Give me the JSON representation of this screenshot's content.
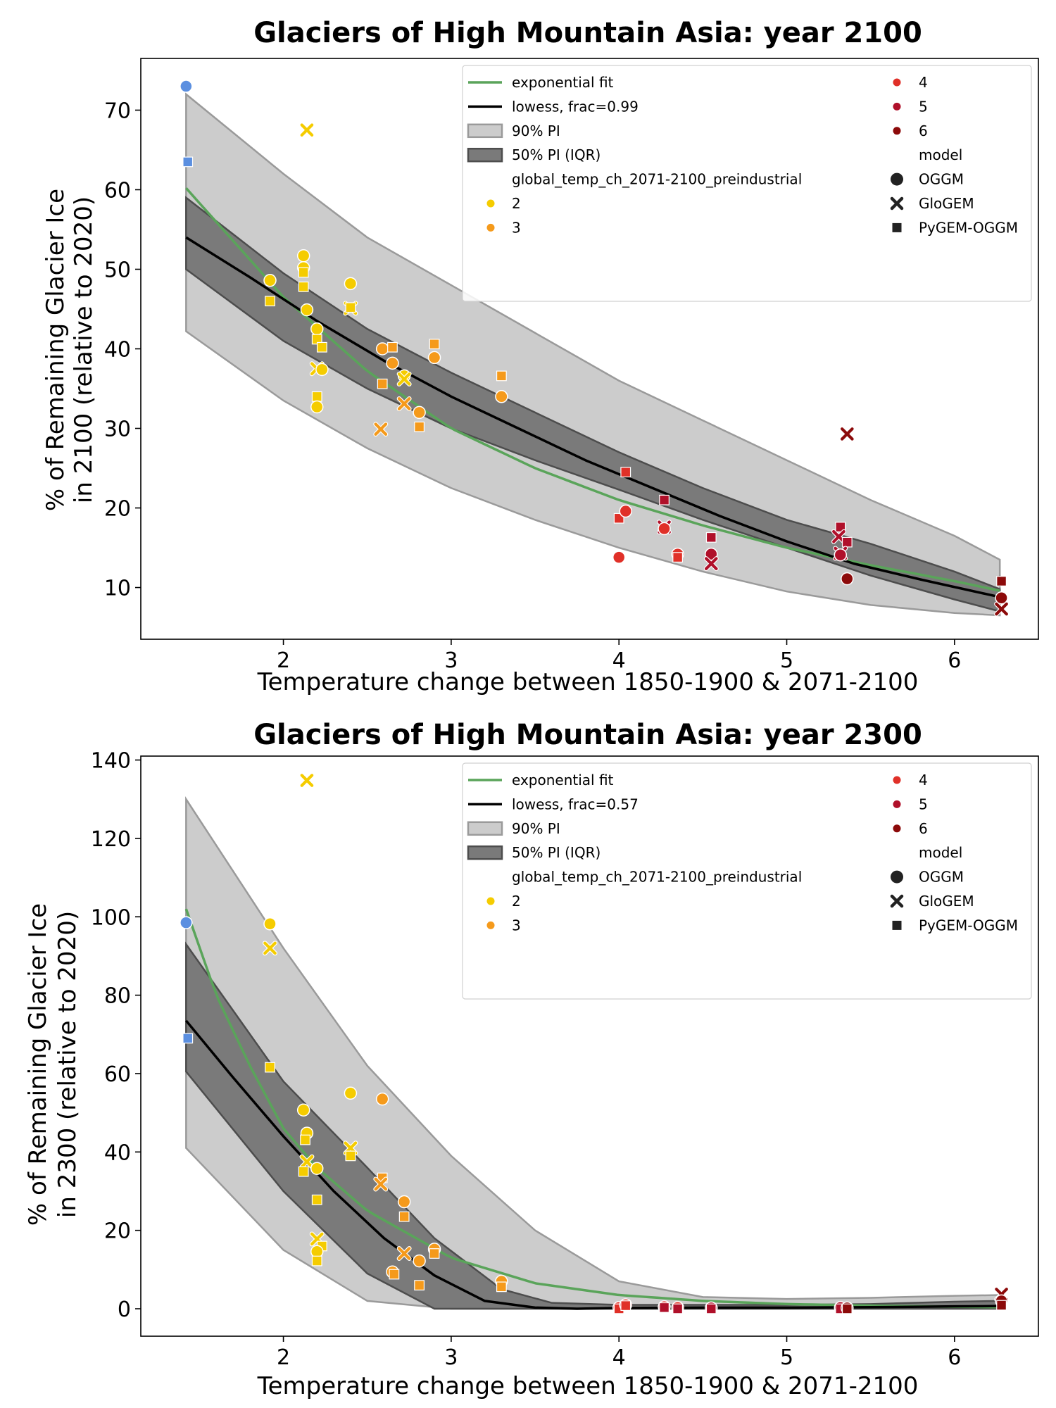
{
  "chart_data": [
    {
      "type": "scatter",
      "title": "Glaciers of High Mountain Asia:  year 2100",
      "xlabel": "Temperature change between 1850-1900 & 2071-2100",
      "ylabel_line1": "% of Remaining Glacier Ice",
      "ylabel_line2": "in 2100 (relative to 2020)",
      "xlim": [
        1.15,
        6.5
      ],
      "ylim": [
        3.5,
        76.5
      ],
      "xticks": [
        2,
        3,
        4,
        5,
        6
      ],
      "yticks": [
        10,
        20,
        30,
        40,
        50,
        60,
        70
      ],
      "legend": {
        "placement": "top-right",
        "fit_label": "exponential fit",
        "lowess_label": "lowess, frac=0.99",
        "pi90_label": "90% PI",
        "pi50_label": "50% PI (IQR)",
        "hue_title": "global_temp_ch_2071-2100_preindustrial",
        "hue_levels": [
          "2",
          "3",
          "4",
          "5",
          "6"
        ],
        "model_title": "model",
        "models": [
          "OGGM",
          "GloGEM",
          "PyGEM-OGGM"
        ]
      },
      "colors": {
        "1": "#5b8fe0",
        "2": "#f5cc00",
        "3": "#f59a1b",
        "4": "#e03028",
        "5": "#b0102a",
        "6": "#8c0a0a",
        "fit": "#5aa45a",
        "lowess": "#000000",
        "pi90": "#cccccc",
        "pi50": "#7a7a7a"
      },
      "exp_fit": {
        "x": [
          1.42,
          2,
          2.5,
          3,
          3.5,
          4,
          4.5,
          5,
          5.5,
          6,
          6.27
        ],
        "y": [
          60.2,
          46.5,
          37.2,
          30,
          25,
          21,
          17.8,
          15,
          12.8,
          10.8,
          9.6
        ]
      },
      "lowess": {
        "x": [
          1.42,
          1.8,
          2.2,
          2.6,
          3,
          3.4,
          3.8,
          4.2,
          4.6,
          5,
          5.4,
          5.8,
          6.27
        ],
        "y": [
          54,
          49,
          43.5,
          38.5,
          34,
          30,
          26,
          22.5,
          19,
          15.8,
          13,
          11,
          8.8
        ]
      },
      "pi90": {
        "x": [
          1.42,
          2,
          2.5,
          3,
          3.5,
          4,
          4.5,
          5,
          5.5,
          6,
          6.27
        ],
        "upper": [
          72,
          62,
          54,
          48,
          42,
          36,
          31,
          26,
          21,
          16.5,
          13.5
        ],
        "lower": [
          42.2,
          33.5,
          27.5,
          22.5,
          18.5,
          15,
          12,
          9.5,
          7.8,
          6.8,
          6.5
        ]
      },
      "pi50": {
        "x": [
          1.42,
          2,
          2.5,
          3,
          3.5,
          4,
          4.5,
          5,
          5.5,
          6,
          6.27
        ],
        "upper": [
          59,
          49.5,
          42.5,
          37,
          32,
          27,
          22.5,
          18.5,
          15.5,
          12,
          9.8
        ],
        "lower": [
          50,
          41,
          35,
          30,
          26,
          22.3,
          18.5,
          15,
          11.5,
          8.5,
          7
        ]
      },
      "points": [
        {
          "x": 1.42,
          "y": 73,
          "model": "OGGM",
          "level": "1"
        },
        {
          "x": 1.43,
          "y": 63.5,
          "model": "PyGEM-OGGM",
          "level": "1"
        },
        {
          "x": 1.92,
          "y": 48.6,
          "model": "OGGM",
          "level": "2"
        },
        {
          "x": 1.92,
          "y": 46,
          "model": "PyGEM-OGGM",
          "level": "2"
        },
        {
          "x": 2.12,
          "y": 51.7,
          "model": "OGGM",
          "level": "2"
        },
        {
          "x": 2.12,
          "y": 50.2,
          "model": "OGGM",
          "level": "2"
        },
        {
          "x": 2.12,
          "y": 49.6,
          "model": "PyGEM-OGGM",
          "level": "2"
        },
        {
          "x": 2.12,
          "y": 47.8,
          "model": "PyGEM-OGGM",
          "level": "2"
        },
        {
          "x": 2.14,
          "y": 67.5,
          "model": "GloGEM",
          "level": "2"
        },
        {
          "x": 2.14,
          "y": 44.9,
          "model": "OGGM",
          "level": "2"
        },
        {
          "x": 2.2,
          "y": 42.5,
          "model": "OGGM",
          "level": "2"
        },
        {
          "x": 2.2,
          "y": 41.2,
          "model": "PyGEM-OGGM",
          "level": "2"
        },
        {
          "x": 2.23,
          "y": 40.2,
          "model": "PyGEM-OGGM",
          "level": "2"
        },
        {
          "x": 2.2,
          "y": 37.5,
          "model": "GloGEM",
          "level": "2"
        },
        {
          "x": 2.23,
          "y": 37.4,
          "model": "OGGM",
          "level": "2"
        },
        {
          "x": 2.2,
          "y": 34,
          "model": "PyGEM-OGGM",
          "level": "2"
        },
        {
          "x": 2.2,
          "y": 32.7,
          "model": "OGGM",
          "level": "2"
        },
        {
          "x": 2.4,
          "y": 48.2,
          "model": "OGGM",
          "level": "2"
        },
        {
          "x": 2.4,
          "y": 45.1,
          "model": "GloGEM",
          "level": "2"
        },
        {
          "x": 2.4,
          "y": 45.2,
          "model": "PyGEM-OGGM",
          "level": "2"
        },
        {
          "x": 2.59,
          "y": 40,
          "model": "OGGM",
          "level": "3"
        },
        {
          "x": 2.65,
          "y": 40.2,
          "model": "PyGEM-OGGM",
          "level": "3"
        },
        {
          "x": 2.65,
          "y": 38.2,
          "model": "OGGM",
          "level": "3"
        },
        {
          "x": 2.59,
          "y": 35.6,
          "model": "PyGEM-OGGM",
          "level": "3"
        },
        {
          "x": 2.72,
          "y": 36.6,
          "model": "OGGM",
          "level": "2"
        },
        {
          "x": 2.72,
          "y": 36.2,
          "model": "GloGEM",
          "level": "2"
        },
        {
          "x": 2.72,
          "y": 33.1,
          "model": "GloGEM",
          "level": "3"
        },
        {
          "x": 2.58,
          "y": 29.9,
          "model": "GloGEM",
          "level": "3"
        },
        {
          "x": 2.81,
          "y": 32,
          "model": "OGGM",
          "level": "3"
        },
        {
          "x": 2.81,
          "y": 30.2,
          "model": "PyGEM-OGGM",
          "level": "3"
        },
        {
          "x": 2.9,
          "y": 40.6,
          "model": "PyGEM-OGGM",
          "level": "3"
        },
        {
          "x": 2.9,
          "y": 38.9,
          "model": "OGGM",
          "level": "3"
        },
        {
          "x": 3.3,
          "y": 36.6,
          "model": "PyGEM-OGGM",
          "level": "3"
        },
        {
          "x": 3.3,
          "y": 34,
          "model": "OGGM",
          "level": "3"
        },
        {
          "x": 4.0,
          "y": 13.8,
          "model": "OGGM",
          "level": "4"
        },
        {
          "x": 4.0,
          "y": 18.7,
          "model": "PyGEM-OGGM",
          "level": "4"
        },
        {
          "x": 4.04,
          "y": 19.6,
          "model": "OGGM",
          "level": "4"
        },
        {
          "x": 4.04,
          "y": 24.5,
          "model": "PyGEM-OGGM",
          "level": "4"
        },
        {
          "x": 4.27,
          "y": 21,
          "model": "PyGEM-OGGM",
          "level": "5"
        },
        {
          "x": 4.27,
          "y": 17.6,
          "model": "GloGEM",
          "level": "5"
        },
        {
          "x": 4.27,
          "y": 17.4,
          "model": "OGGM",
          "level": "4"
        },
        {
          "x": 4.35,
          "y": 14.2,
          "model": "OGGM",
          "level": "4"
        },
        {
          "x": 4.35,
          "y": 13.8,
          "model": "PyGEM-OGGM",
          "level": "4"
        },
        {
          "x": 4.55,
          "y": 16.3,
          "model": "PyGEM-OGGM",
          "level": "5"
        },
        {
          "x": 4.55,
          "y": 14.2,
          "model": "OGGM",
          "level": "5"
        },
        {
          "x": 4.55,
          "y": 13,
          "model": "GloGEM",
          "level": "5"
        },
        {
          "x": 5.32,
          "y": 17.6,
          "model": "PyGEM-OGGM",
          "level": "5"
        },
        {
          "x": 5.31,
          "y": 16.4,
          "model": "GloGEM",
          "level": "5"
        },
        {
          "x": 5.36,
          "y": 15.7,
          "model": "PyGEM-OGGM",
          "level": "5"
        },
        {
          "x": 5.32,
          "y": 14.3,
          "model": "GloGEM",
          "level": "5"
        },
        {
          "x": 5.32,
          "y": 14.1,
          "model": "OGGM",
          "level": "5"
        },
        {
          "x": 5.36,
          "y": 29.3,
          "model": "GloGEM",
          "level": "6"
        },
        {
          "x": 5.36,
          "y": 11.1,
          "model": "OGGM",
          "level": "6"
        },
        {
          "x": 6.28,
          "y": 10.8,
          "model": "PyGEM-OGGM",
          "level": "6"
        },
        {
          "x": 6.28,
          "y": 8.7,
          "model": "OGGM",
          "level": "6"
        },
        {
          "x": 6.28,
          "y": 7.3,
          "model": "GloGEM",
          "level": "6"
        }
      ]
    },
    {
      "type": "scatter",
      "title": "Glaciers of High Mountain Asia:  year 2300",
      "xlabel": "Temperature change between 1850-1900 & 2071-2100",
      "ylabel_line1": "% of Remaining Glacier Ice",
      "ylabel_line2": "in 2300 (relative to 2020)",
      "xlim": [
        1.15,
        6.5
      ],
      "ylim": [
        -7,
        141
      ],
      "xticks": [
        2,
        3,
        4,
        5,
        6
      ],
      "yticks": [
        0,
        20,
        40,
        60,
        80,
        100,
        120,
        140
      ],
      "legend": {
        "placement": "top-right",
        "fit_label": "exponential fit",
        "lowess_label": "lowess, frac=0.57",
        "pi90_label": "90% PI",
        "pi50_label": "50% PI (IQR)",
        "hue_title": "global_temp_ch_2071-2100_preindustrial",
        "hue_levels": [
          "2",
          "3",
          "4",
          "5",
          "6"
        ],
        "model_title": "model",
        "models": [
          "OGGM",
          "GloGEM",
          "PyGEM-OGGM"
        ]
      },
      "colors": {
        "1": "#5b8fe0",
        "2": "#f5cc00",
        "3": "#f59a1b",
        "4": "#e03028",
        "5": "#b0102a",
        "6": "#8c0a0a",
        "fit": "#5aa45a",
        "lowess": "#000000",
        "pi90": "#cccccc",
        "pi50": "#7a7a7a"
      },
      "exp_fit": {
        "x": [
          1.42,
          1.6,
          1.8,
          2,
          2.2,
          2.5,
          3,
          3.5,
          4,
          4.5,
          5,
          5.5,
          6,
          6.27
        ],
        "y": [
          102,
          80,
          62,
          46,
          36,
          25,
          13,
          6.5,
          3.5,
          2,
          1.2,
          0.8,
          0.5,
          0.4
        ]
      },
      "lowess": {
        "x": [
          1.42,
          1.7,
          2.0,
          2.3,
          2.6,
          2.9,
          3.2,
          3.5,
          3.75,
          4,
          4.5,
          5,
          5.5,
          6,
          6.27
        ],
        "y": [
          73.5,
          59,
          44,
          30,
          18,
          8.5,
          2,
          0.3,
          0.0,
          0.2,
          0.3,
          0.3,
          0.4,
          0.6,
          0.7
        ]
      },
      "pi90": {
        "x": [
          1.42,
          2,
          2.5,
          3,
          3.5,
          4,
          4.5,
          5,
          5.5,
          6,
          6.27
        ],
        "upper": [
          130,
          92,
          62,
          39,
          20,
          7,
          3,
          2.5,
          2.8,
          3.3,
          3.5
        ],
        "lower": [
          41,
          15,
          2,
          0,
          0,
          0,
          0,
          0,
          0,
          0,
          0
        ]
      },
      "pi50": {
        "x": [
          1.42,
          2,
          2.5,
          2.9,
          3.3,
          3.6,
          4,
          4.5,
          5,
          5.5,
          6,
          6.27
        ],
        "upper": [
          93,
          58,
          36,
          18,
          5,
          1.5,
          1,
          1,
          1,
          1.2,
          1.8,
          2
        ]
      },
      "pi50_lower": {
        "x": [
          1.42,
          2,
          2.5,
          2.9,
          3.3,
          6.27
        ],
        "lower": [
          60.5,
          30,
          9,
          0,
          0,
          0
        ]
      },
      "points": [
        {
          "x": 1.42,
          "y": 98.5,
          "model": "OGGM",
          "level": "1"
        },
        {
          "x": 1.43,
          "y": 69,
          "model": "PyGEM-OGGM",
          "level": "1"
        },
        {
          "x": 1.92,
          "y": 98.2,
          "model": "OGGM",
          "level": "2"
        },
        {
          "x": 1.92,
          "y": 92,
          "model": "GloGEM",
          "level": "2"
        },
        {
          "x": 1.92,
          "y": 61.6,
          "model": "PyGEM-OGGM",
          "level": "2"
        },
        {
          "x": 2.14,
          "y": 134.8,
          "model": "GloGEM",
          "level": "2"
        },
        {
          "x": 2.12,
          "y": 50.7,
          "model": "OGGM",
          "level": "2"
        },
        {
          "x": 2.14,
          "y": 44.8,
          "model": "OGGM",
          "level": "2"
        },
        {
          "x": 2.13,
          "y": 43.1,
          "model": "PyGEM-OGGM",
          "level": "2"
        },
        {
          "x": 2.14,
          "y": 37.5,
          "model": "GloGEM",
          "level": "2"
        },
        {
          "x": 2.12,
          "y": 35,
          "model": "PyGEM-OGGM",
          "level": "2"
        },
        {
          "x": 2.2,
          "y": 35.8,
          "model": "OGGM",
          "level": "2"
        },
        {
          "x": 2.2,
          "y": 27.8,
          "model": "PyGEM-OGGM",
          "level": "2"
        },
        {
          "x": 2.2,
          "y": 17.8,
          "model": "GloGEM",
          "level": "2"
        },
        {
          "x": 2.23,
          "y": 16,
          "model": "PyGEM-OGGM",
          "level": "2"
        },
        {
          "x": 2.2,
          "y": 14.6,
          "model": "OGGM",
          "level": "2"
        },
        {
          "x": 2.2,
          "y": 12.2,
          "model": "PyGEM-OGGM",
          "level": "2"
        },
        {
          "x": 2.4,
          "y": 55,
          "model": "OGGM",
          "level": "2"
        },
        {
          "x": 2.4,
          "y": 41,
          "model": "GloGEM",
          "level": "2"
        },
        {
          "x": 2.4,
          "y": 39,
          "model": "PyGEM-OGGM",
          "level": "2"
        },
        {
          "x": 2.59,
          "y": 53.5,
          "model": "OGGM",
          "level": "3"
        },
        {
          "x": 2.59,
          "y": 33.4,
          "model": "PyGEM-OGGM",
          "level": "3"
        },
        {
          "x": 2.58,
          "y": 31.8,
          "model": "GloGEM",
          "level": "3"
        },
        {
          "x": 2.65,
          "y": 9.4,
          "model": "OGGM",
          "level": "3"
        },
        {
          "x": 2.66,
          "y": 8.8,
          "model": "PyGEM-OGGM",
          "level": "3"
        },
        {
          "x": 2.72,
          "y": 27.3,
          "model": "OGGM",
          "level": "3"
        },
        {
          "x": 2.72,
          "y": 23.5,
          "model": "PyGEM-OGGM",
          "level": "3"
        },
        {
          "x": 2.72,
          "y": 14.1,
          "model": "GloGEM",
          "level": "3"
        },
        {
          "x": 2.81,
          "y": 12.2,
          "model": "OGGM",
          "level": "3"
        },
        {
          "x": 2.81,
          "y": 6,
          "model": "PyGEM-OGGM",
          "level": "3"
        },
        {
          "x": 2.9,
          "y": 15.2,
          "model": "OGGM",
          "level": "3"
        },
        {
          "x": 2.9,
          "y": 14.1,
          "model": "PyGEM-OGGM",
          "level": "3"
        },
        {
          "x": 3.3,
          "y": 7,
          "model": "OGGM",
          "level": "3"
        },
        {
          "x": 3.3,
          "y": 5.6,
          "model": "PyGEM-OGGM",
          "level": "3"
        },
        {
          "x": 4.0,
          "y": 0.3,
          "model": "OGGM",
          "level": "4"
        },
        {
          "x": 4.0,
          "y": 0,
          "model": "PyGEM-OGGM",
          "level": "4"
        },
        {
          "x": 4.04,
          "y": 1,
          "model": "OGGM",
          "level": "4"
        },
        {
          "x": 4.04,
          "y": 0.8,
          "model": "PyGEM-OGGM",
          "level": "4"
        },
        {
          "x": 4.27,
          "y": 0.5,
          "model": "OGGM",
          "level": "4"
        },
        {
          "x": 4.27,
          "y": 0.3,
          "model": "PyGEM-OGGM",
          "level": "5"
        },
        {
          "x": 4.35,
          "y": 0.3,
          "model": "OGGM",
          "level": "4"
        },
        {
          "x": 4.35,
          "y": 0,
          "model": "PyGEM-OGGM",
          "level": "5"
        },
        {
          "x": 4.55,
          "y": 0.2,
          "model": "OGGM",
          "level": "5"
        },
        {
          "x": 4.55,
          "y": 0,
          "model": "PyGEM-OGGM",
          "level": "5"
        },
        {
          "x": 5.32,
          "y": 0.3,
          "model": "OGGM",
          "level": "5"
        },
        {
          "x": 5.32,
          "y": 0,
          "model": "PyGEM-OGGM",
          "level": "5"
        },
        {
          "x": 5.36,
          "y": 0.2,
          "model": "OGGM",
          "level": "6"
        },
        {
          "x": 5.36,
          "y": 0,
          "model": "PyGEM-OGGM",
          "level": "6"
        },
        {
          "x": 6.28,
          "y": 3.7,
          "model": "GloGEM",
          "level": "6"
        },
        {
          "x": 6.28,
          "y": 2,
          "model": "OGGM",
          "level": "6"
        },
        {
          "x": 6.28,
          "y": 0.9,
          "model": "PyGEM-OGGM",
          "level": "6"
        }
      ]
    }
  ]
}
